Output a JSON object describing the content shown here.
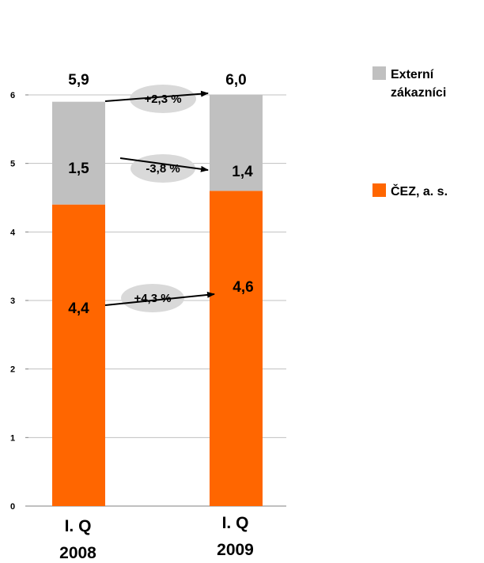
{
  "chart_data": {
    "type": "bar",
    "stacked": true,
    "categories": [
      [
        "I. Q",
        "2008"
      ],
      [
        "I. Q",
        "2009"
      ]
    ],
    "series": [
      {
        "name": "ČEZ, a. s.",
        "values": [
          4.4,
          4.6
        ],
        "color": "#ff6600",
        "labels": [
          "4,4",
          "4,6"
        ]
      },
      {
        "name": "Externí zákazníci",
        "values": [
          1.5,
          1.4
        ],
        "color": "#c0c0c0",
        "labels": [
          "1,5",
          "1,4"
        ]
      }
    ],
    "totals": [
      5.9,
      6.0
    ],
    "total_labels": [
      "5,9",
      "6,0"
    ],
    "changes": [
      {
        "series": "total",
        "label": "+2,3 %"
      },
      {
        "series": "Externí zákazníci",
        "label": "-3,8 %"
      },
      {
        "series": "ČEZ, a. s.",
        "label": "+4,3 %"
      }
    ],
    "legend": [
      {
        "lines": [
          "Externí",
          "zákazníci"
        ],
        "color": "#c0c0c0"
      },
      {
        "lines": [
          "ČEZ, a. s."
        ],
        "color": "#ff6600"
      }
    ],
    "legend_position": "right",
    "yticks": [
      "0",
      "1",
      "2",
      "3",
      "4",
      "5",
      "6"
    ],
    "ylim": [
      0,
      6
    ],
    "grid": true
  }
}
